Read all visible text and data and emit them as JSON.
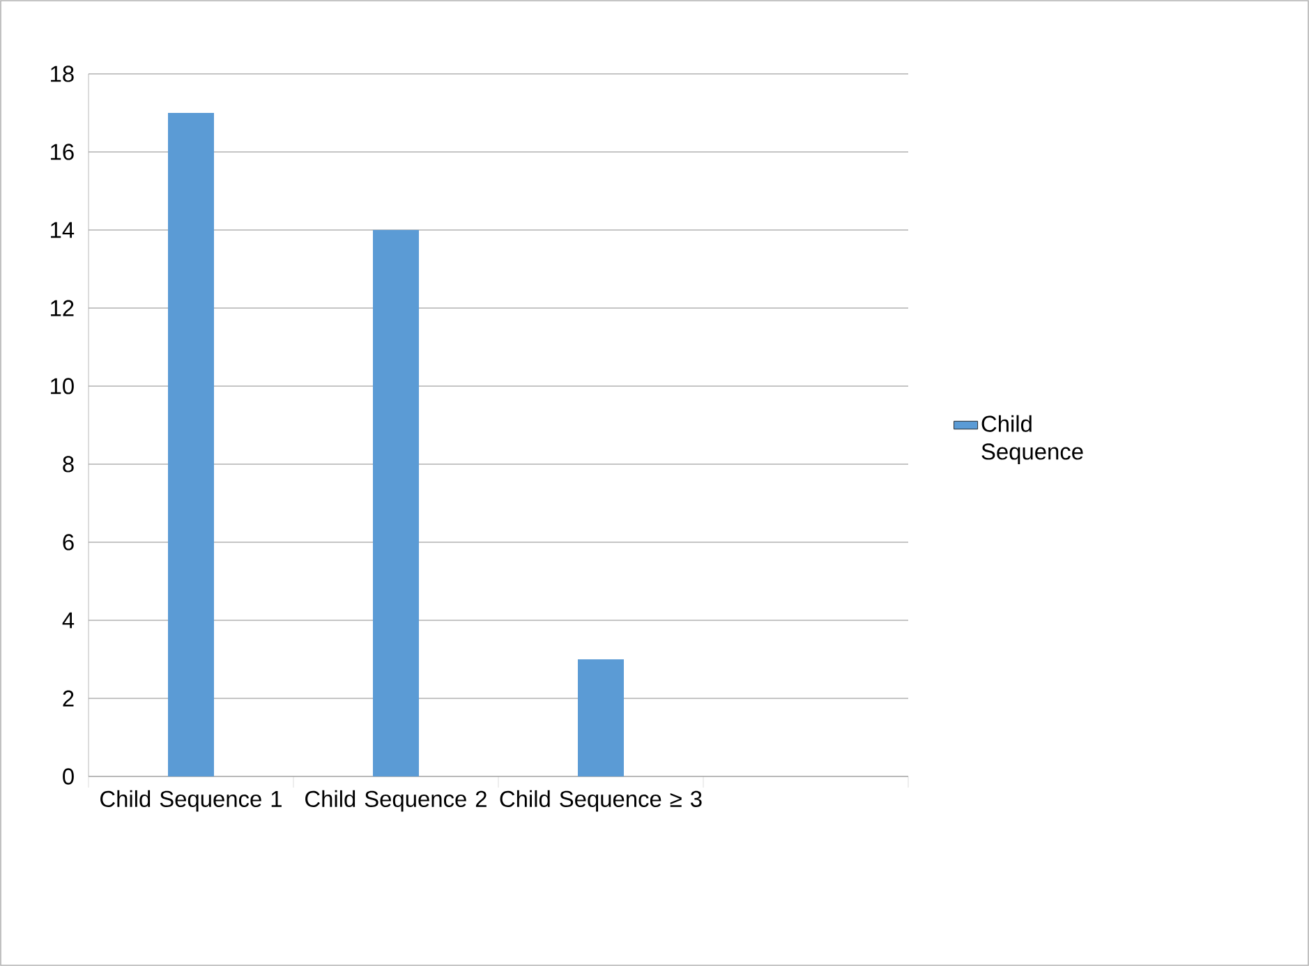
{
  "chart_data": {
    "type": "bar",
    "categories": [
      "Child Sequence 1",
      "Child Sequence 2",
      "Child Sequence ≥ 3",
      null
    ],
    "series": [
      {
        "name": "Child Sequence",
        "color": "#5b9bd5",
        "values": [
          17,
          14,
          3,
          null
        ]
      }
    ],
    "ylim": [
      0,
      18
    ],
    "yticks": [
      0,
      2,
      4,
      6,
      8,
      10,
      12,
      14,
      16,
      18
    ],
    "grid": "y",
    "legend": "right"
  }
}
